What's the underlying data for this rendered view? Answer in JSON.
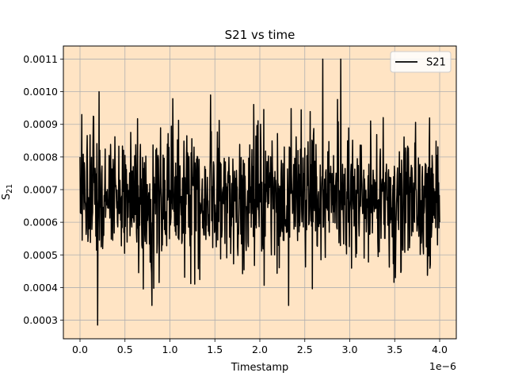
{
  "chart_data": {
    "type": "line",
    "title": "S21 vs time",
    "xlabel": "Timestamp",
    "ylabel_base": "S",
    "ylabel_sub": "21",
    "x_offset_label": "1e−6",
    "xlim": [
      -1.85e-07,
      4.185e-06
    ],
    "ylim": [
      0.000243,
      0.00114
    ],
    "xticks": [
      0,
      5e-07,
      1e-06,
      1.5e-06,
      2e-06,
      2.5e-06,
      3e-06,
      3.5e-06,
      4e-06
    ],
    "xtick_labels": [
      "0.0",
      "0.5",
      "1.0",
      "1.5",
      "2.0",
      "2.5",
      "3.0",
      "3.5",
      "4.0"
    ],
    "yticks": [
      0.0003,
      0.0004,
      0.0005,
      0.0006,
      0.0007,
      0.0008,
      0.0009,
      0.001,
      0.0011
    ],
    "ytick_labels": [
      "0.0003",
      "0.0004",
      "0.0005",
      "0.0006",
      "0.0007",
      "0.0008",
      "0.0009",
      "0.0010",
      "0.0011"
    ],
    "grid": true,
    "legend_position": "top-right",
    "plot_background": "#ffe4c4",
    "line_color": "#000000",
    "series": [
      {
        "name": "S21",
        "n_points": 1001,
        "x_start": 0,
        "x_end": 4e-06,
        "mean": 0.00067,
        "min": 0.000285,
        "max": 0.0011,
        "sample_x": [
          0,
          2e-08,
          1.95e-07,
          2.1e-07,
          8e-07,
          1.45e-06,
          2.32e-06,
          2.7e-06,
          2.9e-06,
          4e-06
        ],
        "sample_y": [
          0.0008,
          0.00093,
          0.000285,
          0.001,
          0.000345,
          0.00099,
          0.000345,
          0.0011,
          0.0011,
          0.0006
        ]
      }
    ]
  }
}
